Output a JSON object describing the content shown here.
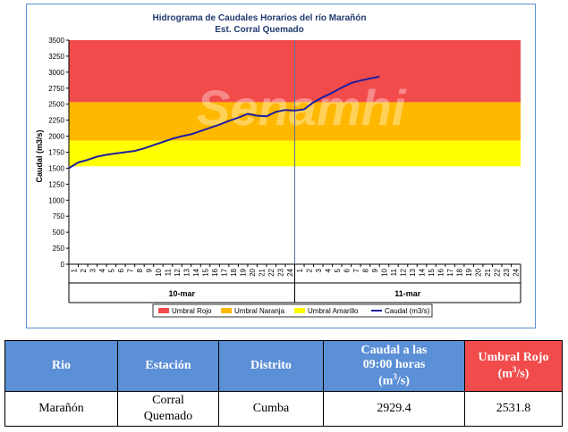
{
  "chart_data": {
    "type": "line",
    "title": "Hidrograma de Caudales Horarios del río Marañón",
    "subtitle": "Est. Corral Quemado",
    "ylabel": "Caudal (m3/s)",
    "ylim": [
      0,
      3500
    ],
    "yticks": [
      0,
      250,
      500,
      750,
      1000,
      1250,
      1500,
      1750,
      2000,
      2250,
      2500,
      2750,
      3000,
      3250,
      3500
    ],
    "xticks_day1": [
      "1",
      "2",
      "3",
      "4",
      "5",
      "6",
      "7",
      "8",
      "9",
      "10",
      "11",
      "12",
      "13",
      "14",
      "15",
      "16",
      "17",
      "18",
      "19",
      "20",
      "21",
      "22",
      "23",
      "24"
    ],
    "xticks_day2": [
      "1",
      "2",
      "3",
      "4",
      "5",
      "6",
      "7",
      "8",
      "9",
      "10",
      "11",
      "12",
      "13",
      "14",
      "15",
      "16",
      "17",
      "18",
      "19",
      "20",
      "21",
      "22",
      "23",
      "24"
    ],
    "day_labels": [
      "10-mar",
      "11-mar"
    ],
    "thresholds": {
      "amarillo": [
        1530,
        1930
      ],
      "naranja": [
        1930,
        2531.8
      ],
      "rojo": [
        2531.8,
        3500
      ]
    },
    "threshold_colors": {
      "rojo": "#f24b4b",
      "naranja": "#ffb800",
      "amarillo": "#ffff00"
    },
    "series": [
      {
        "name": "Caudal (m3/s)",
        "color": "#1f1fa0",
        "x": [
          0,
          1,
          2,
          3,
          4,
          5,
          6,
          7,
          8,
          9,
          10,
          11,
          12,
          13,
          14,
          15,
          16,
          17,
          18,
          19,
          20,
          21,
          22,
          23,
          24,
          25,
          26,
          27,
          28,
          29,
          30,
          31,
          32,
          33
        ],
        "values": [
          1500,
          1590,
          1630,
          1680,
          1710,
          1730,
          1750,
          1770,
          1810,
          1860,
          1910,
          1960,
          2000,
          2030,
          2080,
          2130,
          2180,
          2240,
          2290,
          2350,
          2320,
          2310,
          2380,
          2410,
          2400,
          2420,
          2530,
          2610,
          2680,
          2760,
          2830,
          2870,
          2900,
          2929.4
        ]
      }
    ],
    "legend": [
      {
        "label": "Umbral Rojo",
        "color": "#f24b4b"
      },
      {
        "label": "Umbral Naranja",
        "color": "#ffb800"
      },
      {
        "label": "Umbral Amarillo",
        "color": "#ffff00"
      },
      {
        "label": "Caudal (m3/s)",
        "color": "#1f1fa0"
      }
    ],
    "legend_position": "bottom",
    "watermark": "Senamhi"
  },
  "table": {
    "headers": {
      "rio": "Rio",
      "estacion": "Estación",
      "distrito": "Distrito",
      "caudal_line1": "Caudal a las",
      "caudal_line2": "09:00 horas",
      "caudal_unit": "(m",
      "caudal_sup": "3",
      "caudal_unit_end": "/s)",
      "umbral_line1": "Umbral Rojo",
      "umbral_unit": "(m",
      "umbral_sup": "3",
      "umbral_unit_end": "/s)"
    },
    "row": {
      "rio": "Marañón",
      "estacion_line1": "Corral",
      "estacion_line2": "Quemado",
      "distrito": "Cumba",
      "caudal": "2929.4",
      "umbral": "2531.8"
    }
  }
}
